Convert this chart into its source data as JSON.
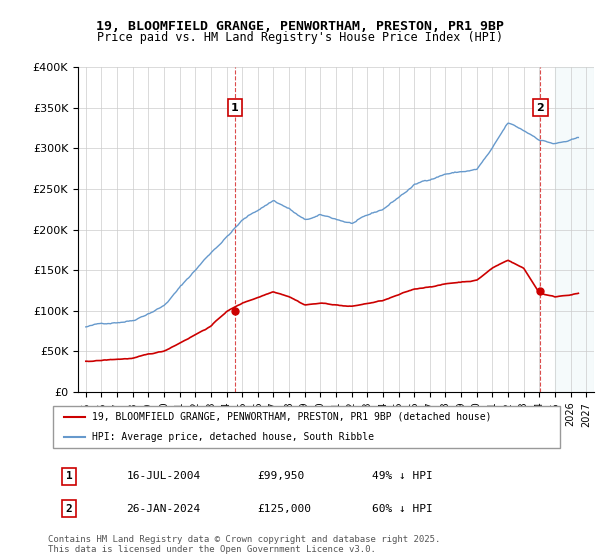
{
  "title": "19, BLOOMFIELD GRANGE, PENWORTHAM, PRESTON, PR1 9BP",
  "subtitle": "Price paid vs. HM Land Registry's House Price Index (HPI)",
  "legend_line1": "19, BLOOMFIELD GRANGE, PENWORTHAM, PRESTON, PR1 9BP (detached house)",
  "legend_line2": "HPI: Average price, detached house, South Ribble",
  "sale1_label": "1",
  "sale1_date": "16-JUL-2004",
  "sale1_price": "£99,950",
  "sale1_pct": "49% ↓ HPI",
  "sale2_label": "2",
  "sale2_date": "26-JAN-2024",
  "sale2_price": "£125,000",
  "sale2_pct": "60% ↓ HPI",
  "footer": "Contains HM Land Registry data © Crown copyright and database right 2025.\nThis data is licensed under the Open Government Licence v3.0.",
  "red_color": "#cc0000",
  "blue_color": "#6699cc",
  "sale1_x": 2004.54,
  "sale1_y": 99950,
  "sale2_x": 2024.07,
  "sale2_y": 125000,
  "ylim": [
    0,
    400000
  ],
  "xlim": [
    1994.5,
    2027.5
  ],
  "yticks": [
    0,
    50000,
    100000,
    150000,
    200000,
    250000,
    300000,
    350000,
    400000
  ],
  "ytick_labels": [
    "£0",
    "£50K",
    "£100K",
    "£150K",
    "£200K",
    "£250K",
    "£300K",
    "£350K",
    "£400K"
  ],
  "xticks": [
    1995,
    1996,
    1997,
    1998,
    1999,
    2000,
    2001,
    2002,
    2003,
    2004,
    2005,
    2006,
    2007,
    2008,
    2009,
    2010,
    2011,
    2012,
    2013,
    2014,
    2015,
    2016,
    2017,
    2018,
    2019,
    2020,
    2021,
    2022,
    2023,
    2024,
    2025,
    2026,
    2027
  ]
}
